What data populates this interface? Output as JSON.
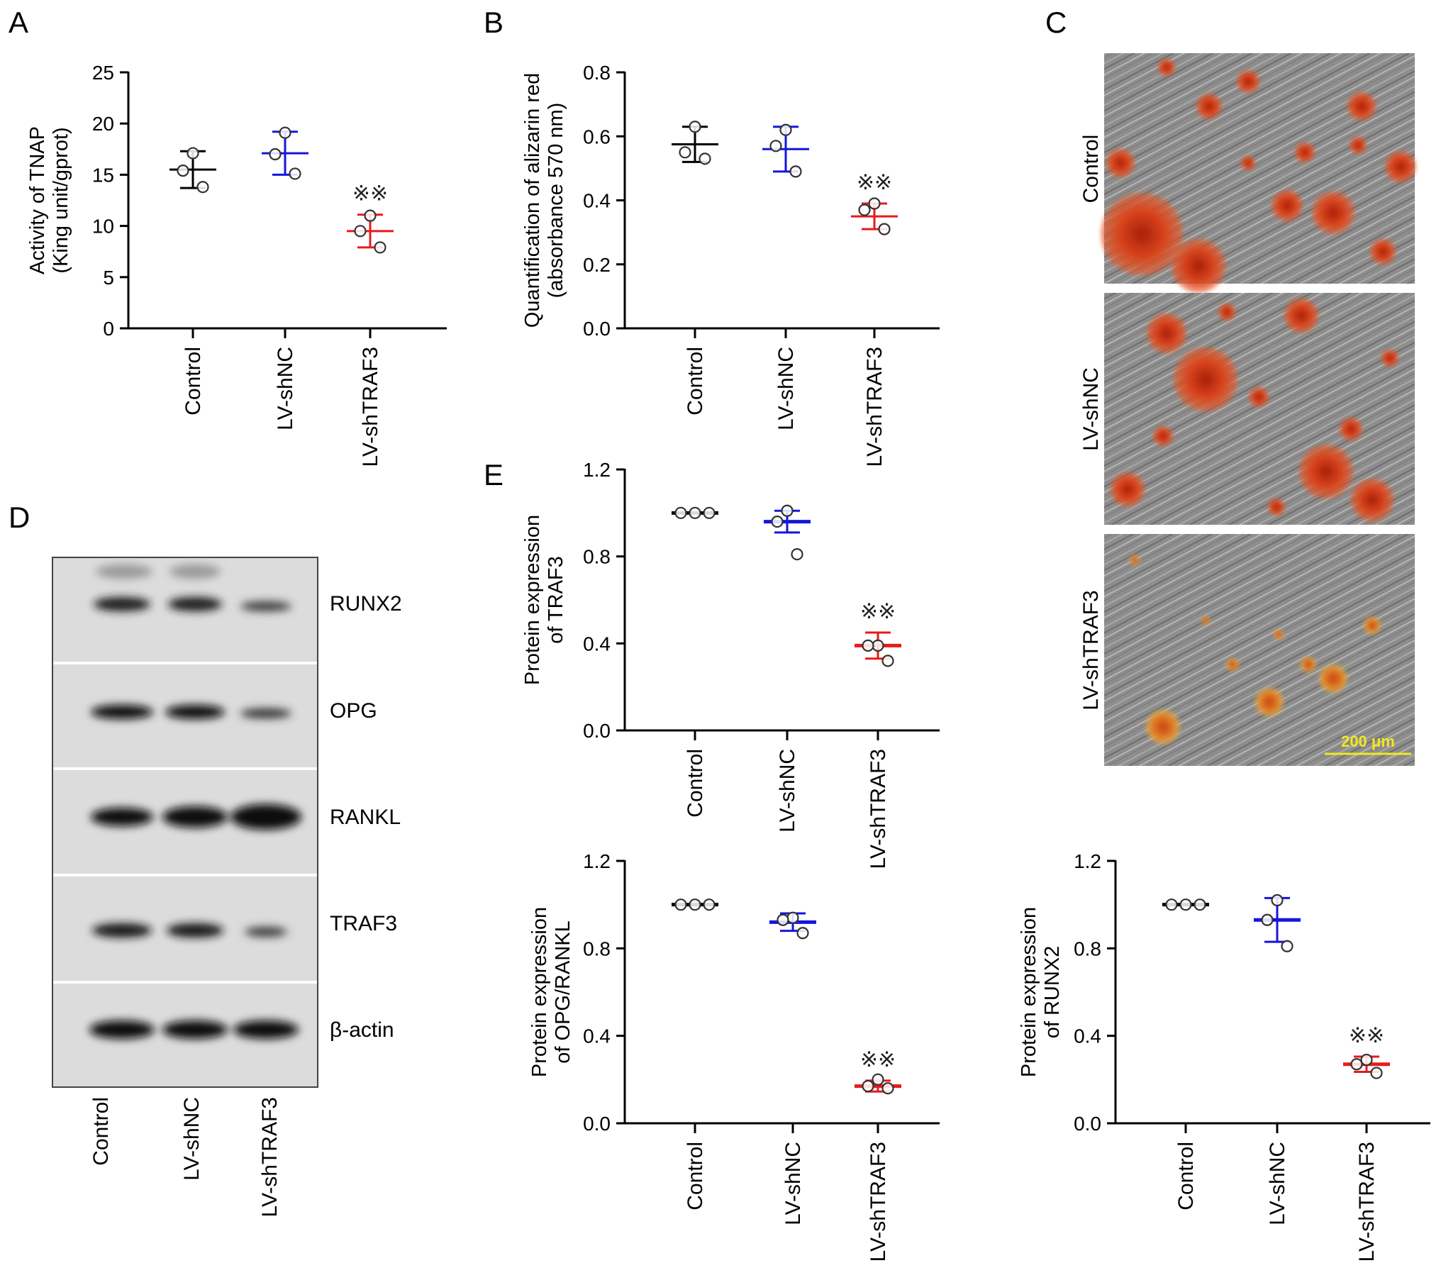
{
  "panels": {
    "A": "A",
    "B": "B",
    "C": "C",
    "D": "D",
    "E": "E"
  },
  "colors": {
    "Control": "#000000",
    "LV-shNC": "#1515e0",
    "LV-shTRAF3": "#e61b1b"
  },
  "significance_mark": "※※",
  "chart_data": [
    {
      "id": "A",
      "type": "scatter",
      "ylabel_lines": [
        "Activity of TNAP",
        "(King unit/gprot)"
      ],
      "categories": [
        "Control",
        "LV-shNC",
        "LV-shTRAF3"
      ],
      "ylim": [
        0,
        25
      ],
      "yticks": [
        0,
        5,
        10,
        15,
        20,
        25
      ],
      "tick_decimals": 0,
      "means": [
        15.5,
        17.1,
        9.5
      ],
      "errors": [
        1.8,
        2.1,
        1.6
      ],
      "points": [
        [
          17.1,
          15.4,
          13.8
        ],
        [
          19.1,
          17.0,
          15.1
        ],
        [
          11.0,
          9.5,
          7.9
        ]
      ],
      "significant": [
        false,
        false,
        true
      ]
    },
    {
      "id": "B",
      "type": "scatter",
      "ylabel_lines": [
        "Quantification of alizarin red",
        "(absorbance 570 nm)"
      ],
      "categories": [
        "Control",
        "LV-shNC",
        "LV-shTRAF3"
      ],
      "ylim": [
        0,
        0.8
      ],
      "yticks": [
        0,
        0.2,
        0.4,
        0.6,
        0.8
      ],
      "tick_decimals": 1,
      "means": [
        0.575,
        0.56,
        0.35
      ],
      "errors": [
        0.055,
        0.07,
        0.04
      ],
      "points": [
        [
          0.63,
          0.55,
          0.53
        ],
        [
          0.62,
          0.57,
          0.49
        ],
        [
          0.39,
          0.37,
          0.31
        ]
      ],
      "significant": [
        false,
        false,
        true
      ]
    },
    {
      "id": "E1",
      "type": "scatter",
      "ylabel_lines": [
        "Protein expression",
        "of TRAF3"
      ],
      "categories": [
        "Control",
        "LV-shNC",
        "LV-shTRAF3"
      ],
      "ylim": [
        0,
        1.2
      ],
      "yticks": [
        0,
        0.4,
        0.8,
        1.2
      ],
      "tick_decimals": 1,
      "means": [
        1.0,
        0.96,
        0.39
      ],
      "errors": [
        0,
        0.05,
        0.06
      ],
      "points": [
        [
          1.0,
          1.0,
          1.0
        ],
        [
          1.01,
          0.96,
          0.81
        ],
        [
          0.39,
          0.39,
          0.32
        ]
      ],
      "significant": [
        false,
        false,
        true
      ]
    },
    {
      "id": "E2",
      "type": "scatter",
      "ylabel_lines": [
        "Protein expression",
        "of OPG/RANKL"
      ],
      "categories": [
        "Control",
        "LV-shNC",
        "LV-shTRAF3"
      ],
      "ylim": [
        0,
        1.2
      ],
      "yticks": [
        0,
        0.4,
        0.8,
        1.2
      ],
      "tick_decimals": 1,
      "means": [
        1.0,
        0.92,
        0.17
      ],
      "errors": [
        0,
        0.04,
        0.025
      ],
      "points": [
        [
          1.0,
          1.0,
          1.0
        ],
        [
          0.94,
          0.93,
          0.87
        ],
        [
          0.2,
          0.17,
          0.16
        ]
      ],
      "significant": [
        false,
        false,
        true
      ]
    },
    {
      "id": "E3",
      "type": "scatter",
      "ylabel_lines": [
        "Protein expression",
        "of RUNX2"
      ],
      "categories": [
        "Control",
        "LV-shNC",
        "LV-shTRAF3"
      ],
      "ylim": [
        0,
        1.2
      ],
      "yticks": [
        0,
        0.4,
        0.8,
        1.2
      ],
      "tick_decimals": 1,
      "means": [
        1.0,
        0.93,
        0.27
      ],
      "errors": [
        0,
        0.1,
        0.035
      ],
      "points": [
        [
          1.0,
          1.0,
          1.0
        ],
        [
          1.02,
          0.93,
          0.81
        ],
        [
          0.29,
          0.27,
          0.23
        ]
      ],
      "significant": [
        false,
        false,
        true
      ]
    }
  ],
  "micrographs": {
    "rows": [
      "Control",
      "LV-shNC",
      "LV-shTRAF3"
    ],
    "scale_bar": "200 μm"
  },
  "western_blot": {
    "bands": [
      "RUNX2",
      "OPG",
      "RANKL",
      "TRAF3",
      "β-actin"
    ],
    "lanes": [
      "Control",
      "LV-shNC",
      "LV-shTRAF3"
    ]
  }
}
